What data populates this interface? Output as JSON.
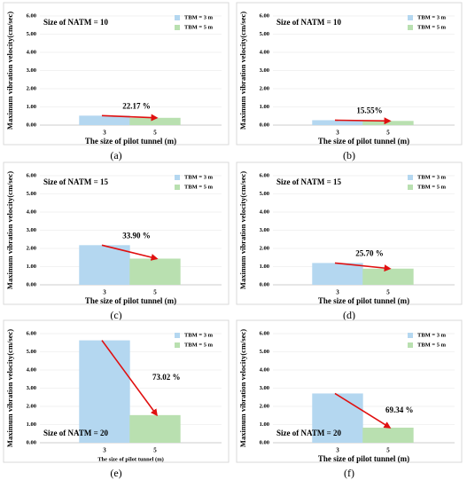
{
  "chart_data": [
    {
      "type": "bar",
      "panel_label": "(a)",
      "annotation": "Size of NATM = 10",
      "annotation_position": "top-left",
      "change_label": "22.17 %",
      "categories": [
        "3",
        "5"
      ],
      "series": [
        {
          "name": "TBM = 3 m",
          "color": "#b4d7f0",
          "values": [
            0.52,
            null
          ]
        },
        {
          "name": "TBM = 5 m",
          "color": "#b9e0b0",
          "values": [
            null,
            0.4
          ]
        }
      ],
      "x_label": "The size of pilot tunnel (m)",
      "y_label": "Maximum vibration velocity(cm/sec)",
      "ylim": [
        0,
        6
      ],
      "yticks": [
        {
          "value": 0,
          "label": "0.00"
        },
        {
          "value": 1,
          "label": "1.00"
        },
        {
          "value": 2,
          "label": "2.00"
        },
        {
          "value": 3,
          "label": "3.00"
        },
        {
          "value": 4,
          "label": "4.00"
        },
        {
          "value": 5,
          "label": "5.00"
        },
        {
          "value": 6,
          "label": "6.00"
        }
      ]
    },
    {
      "type": "bar",
      "panel_label": "(b)",
      "annotation": "Size of NATM = 10",
      "annotation_position": "top-left",
      "change_label": "15.55%",
      "categories": [
        "3",
        "5"
      ],
      "series": [
        {
          "name": "TBM = 3 m",
          "color": "#b4d7f0",
          "values": [
            0.27,
            null
          ]
        },
        {
          "name": "TBM = 5 m",
          "color": "#b9e0b0",
          "values": [
            null,
            0.23
          ]
        }
      ],
      "x_label": "The size of pilot tunnel (m)",
      "y_label": "Maximum vibration velocity(cm/sec)",
      "ylim": [
        0,
        6
      ],
      "yticks": [
        {
          "value": 0,
          "label": "0.00"
        },
        {
          "value": 1,
          "label": "1.00"
        },
        {
          "value": 2,
          "label": "2.00"
        },
        {
          "value": 3,
          "label": "3.00"
        },
        {
          "value": 4,
          "label": "4.00"
        },
        {
          "value": 5,
          "label": "5.00"
        },
        {
          "value": 6,
          "label": "6.00"
        }
      ]
    },
    {
      "type": "bar",
      "panel_label": "(c)",
      "annotation": "Size of NATM = 15",
      "annotation_position": "top-left",
      "change_label": "33.90 %",
      "categories": [
        "3",
        "5"
      ],
      "series": [
        {
          "name": "TBM = 3 m",
          "color": "#b4d7f0",
          "values": [
            2.18,
            null
          ]
        },
        {
          "name": "TBM = 5 m",
          "color": "#b9e0b0",
          "values": [
            null,
            1.44
          ]
        }
      ],
      "x_label": "The size of pilot tunnel (m)",
      "y_label": "Maximum vibration velocity(cm/sec)",
      "ylim": [
        0,
        6
      ],
      "yticks": [
        {
          "value": 0,
          "label": "0.00"
        },
        {
          "value": 1,
          "label": "1.00"
        },
        {
          "value": 2,
          "label": "2.00"
        },
        {
          "value": 3,
          "label": "3.00"
        },
        {
          "value": 4,
          "label": "4.00"
        },
        {
          "value": 5,
          "label": "5.00"
        },
        {
          "value": 6,
          "label": "6.00"
        }
      ]
    },
    {
      "type": "bar",
      "panel_label": "(d)",
      "annotation": "Size of NATM = 15",
      "annotation_position": "top-left",
      "change_label": "25.70 %",
      "categories": [
        "3",
        "5"
      ],
      "series": [
        {
          "name": "TBM = 3 m",
          "color": "#b4d7f0",
          "values": [
            1.2,
            null
          ]
        },
        {
          "name": "TBM = 5 m",
          "color": "#b9e0b0",
          "values": [
            null,
            0.89
          ]
        }
      ],
      "x_label": "The size of pilot tunnel (m)",
      "y_label": "Maximum vibration velocity(cm/sec)",
      "ylim": [
        0,
        6
      ],
      "yticks": [
        {
          "value": 0,
          "label": "0.00"
        },
        {
          "value": 1,
          "label": "1.00"
        },
        {
          "value": 2,
          "label": "2.00"
        },
        {
          "value": 3,
          "label": "3.00"
        },
        {
          "value": 4,
          "label": "4.00"
        },
        {
          "value": 5,
          "label": "5.00"
        },
        {
          "value": 6,
          "label": "6.00"
        }
      ]
    },
    {
      "type": "bar",
      "panel_label": "(e)",
      "annotation": "Size of NATM = 20",
      "annotation_position": "bottom-left",
      "change_label": "73.02 %",
      "categories": [
        "3",
        "5"
      ],
      "series": [
        {
          "name": "TBM = 3 m",
          "color": "#b4d7f0",
          "values": [
            5.63,
            null
          ]
        },
        {
          "name": "TBM = 5 m",
          "color": "#b9e0b0",
          "values": [
            null,
            1.52
          ]
        }
      ],
      "x_label": "The size of pilot tunnel (m)",
      "y_label": "Maximum vibration velocity(cm/sec)",
      "ylim": [
        0,
        6
      ],
      "yticks": [
        {
          "value": 0,
          "label": "0.00"
        },
        {
          "value": 1,
          "label": "1.00"
        },
        {
          "value": 2,
          "label": "2.00"
        },
        {
          "value": 3,
          "label": "3.00"
        },
        {
          "value": 4,
          "label": "4.00"
        },
        {
          "value": 5,
          "label": "5.00"
        },
        {
          "value": 6,
          "label": "6.00"
        }
      ]
    },
    {
      "type": "bar",
      "panel_label": "(f)",
      "annotation": "Size of NATM = 20",
      "annotation_position": "bottom-left",
      "change_label": "69.34 %",
      "categories": [
        "3",
        "5"
      ],
      "series": [
        {
          "name": "TBM = 3 m",
          "color": "#b4d7f0",
          "values": [
            2.71,
            null
          ]
        },
        {
          "name": "TBM = 5 m",
          "color": "#b9e0b0",
          "values": [
            null,
            0.83
          ]
        }
      ],
      "x_label": "The size of pilot tunnel (m)",
      "y_label": "Maximum vibration velocity(cm/sec)",
      "ylim": [
        0,
        6
      ],
      "yticks": [
        {
          "value": 0,
          "label": "0.00"
        },
        {
          "value": 1,
          "label": "1.00"
        },
        {
          "value": 2,
          "label": "2.00"
        },
        {
          "value": 3,
          "label": "3.00"
        },
        {
          "value": 4,
          "label": "4.00"
        },
        {
          "value": 5,
          "label": "5.00"
        },
        {
          "value": 6,
          "label": "6.00"
        }
      ]
    }
  ]
}
